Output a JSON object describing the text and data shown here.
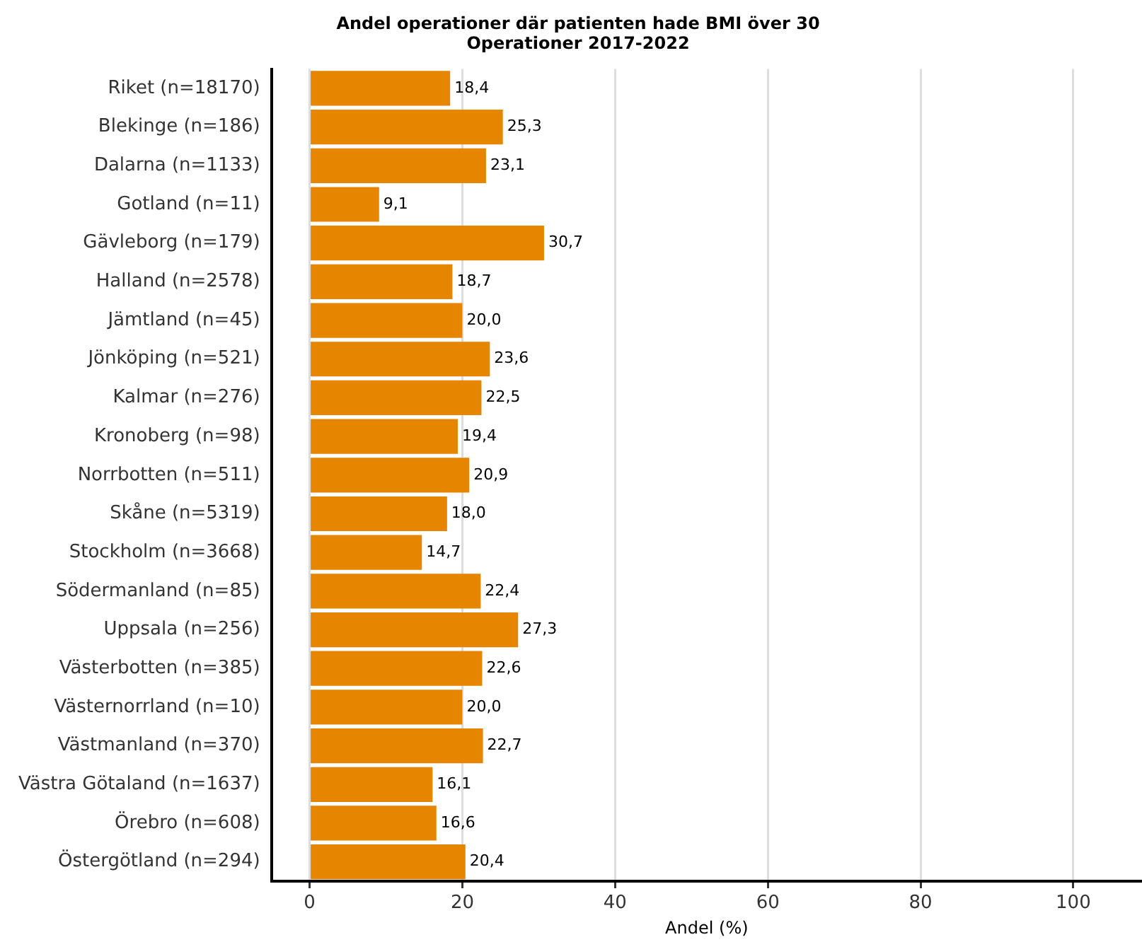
{
  "chart_data": {
    "type": "bar",
    "orientation": "horizontal",
    "title": "Andel operationer där patienten hade BMI över 30",
    "subtitle": "Operationer 2017-2022",
    "xlabel": "Andel (%)",
    "categories": [
      "Riket (n=18170)",
      "Blekinge (n=186)",
      "Dalarna (n=1133)",
      "Gotland (n=11)",
      "Gävleborg (n=179)",
      "Halland (n=2578)",
      "Jämtland (n=45)",
      "Jönköping (n=521)",
      "Kalmar (n=276)",
      "Kronoberg (n=98)",
      "Norrbotten (n=511)",
      "Skåne (n=5319)",
      "Stockholm (n=3668)",
      "Södermanland (n=85)",
      "Uppsala (n=256)",
      "Västerbotten (n=385)",
      "Västernorrland (n=10)",
      "Västmanland (n=370)",
      "Västra Götaland (n=1637)",
      "Örebro (n=608)",
      "Östergötland (n=294)"
    ],
    "values": [
      18.4,
      25.3,
      23.1,
      9.1,
      30.7,
      18.7,
      20.0,
      23.6,
      22.5,
      19.4,
      20.9,
      18.0,
      14.7,
      22.4,
      27.3,
      22.6,
      20.0,
      22.7,
      16.1,
      16.6,
      20.4
    ],
    "value_labels": [
      "18,4",
      "25,3",
      "23,1",
      "9,1",
      "30,7",
      "18,7",
      "20,0",
      "23,6",
      "22,5",
      "19,4",
      "20,9",
      "18,0",
      "14,7",
      "22,4",
      "27,3",
      "22,6",
      "20,0",
      "22,7",
      "16,1",
      "16,6",
      "20,4"
    ],
    "color": "#e68600",
    "xlim": [
      -5,
      109
    ],
    "xticks": [
      0,
      20,
      40,
      60,
      80,
      100
    ],
    "grid": "x",
    "legend": false
  }
}
